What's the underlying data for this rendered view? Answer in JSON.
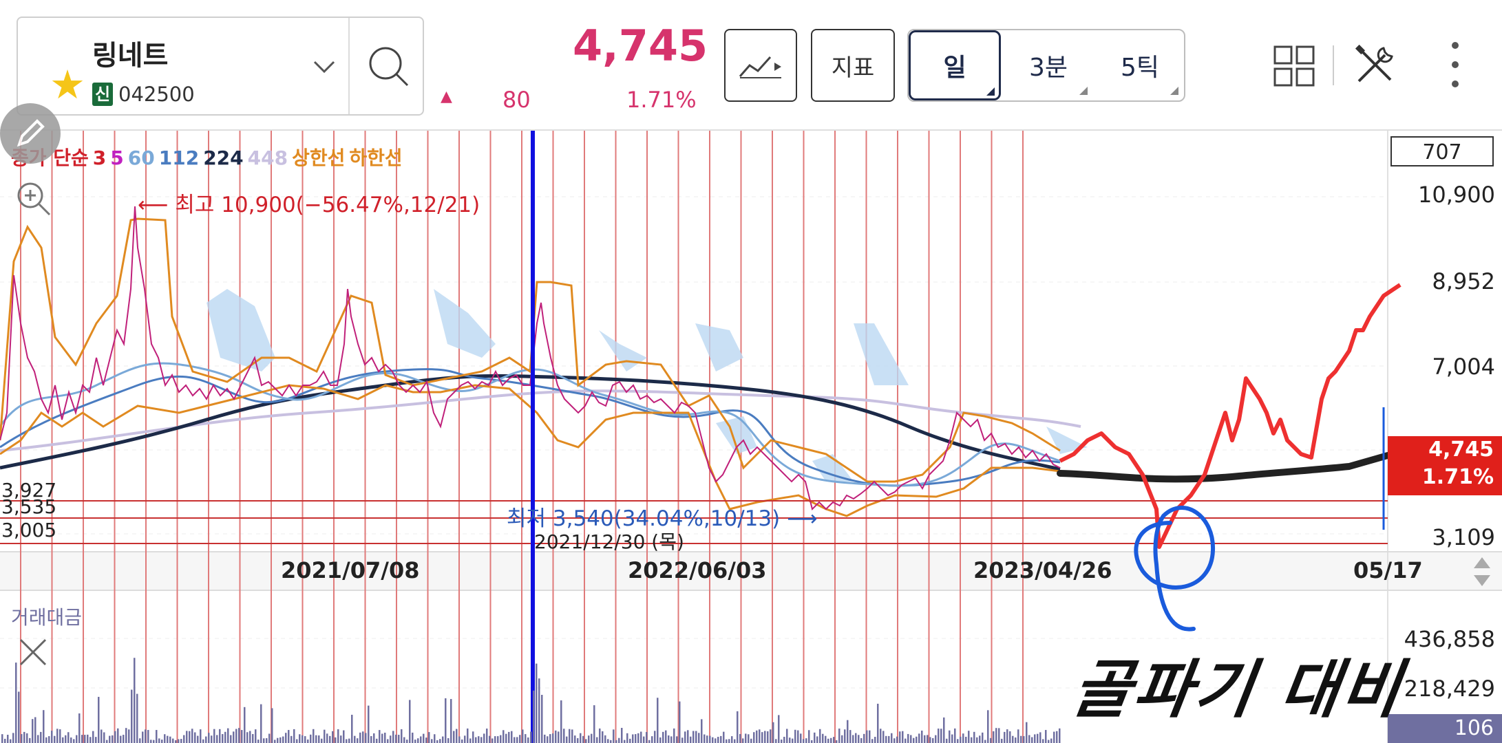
{
  "header": {
    "stock_name": "링네트",
    "market_badge": "신",
    "stock_code": "042500",
    "price": "4,745",
    "change_arrow": "▲",
    "change_value": "80",
    "change_percent": "1.71%",
    "chart_type_icon": "line-chart-icon",
    "indicator_label": "지표",
    "periods": [
      "일",
      "3분",
      "5틱"
    ],
    "active_period": "일"
  },
  "chart_panel": {
    "legend": [
      {
        "label": "종가 단순",
        "color": "#d0202a"
      },
      {
        "label": "3",
        "color": "#d0202a"
      },
      {
        "label": "5",
        "color": "#c020c0"
      },
      {
        "label": "60",
        "color": "#7aa9d8"
      },
      {
        "label": "112",
        "color": "#4a7cc0"
      },
      {
        "label": "224",
        "color": "#1c2a48"
      },
      {
        "label": "448",
        "color": "#c8c0e0"
      },
      {
        "label": "상한선",
        "color": "#e08a20"
      },
      {
        "label": "하한선",
        "color": "#e08a20"
      }
    ],
    "box_value": "707",
    "y_labels": [
      "10,900",
      "8,952",
      "7,004",
      "3,109"
    ],
    "left_labels": [
      "3,927",
      "3,535",
      "3,005"
    ],
    "current_price": "4,745",
    "current_pct": "1.71%",
    "x_labels": [
      "2021/07/08",
      "2022/06/03",
      "2023/04/26",
      "05/17"
    ],
    "high_annotation": "최고 10,900(−56.47%,12/21)",
    "low_annotation": "최저 3,540(34.04%,10/13)",
    "crosshair_date": "2021/12/30 (목)"
  },
  "volume_panel": {
    "title": "거래대금",
    "y_labels": [
      "436,858",
      "218,429"
    ],
    "current": "106"
  },
  "handwriting": "골파기 대비",
  "colors": {
    "accent_pink": "#d6336c",
    "up_red": "#e0201b",
    "crosshair_blue": "#1010e0",
    "ma224": "#1c2a48"
  }
}
